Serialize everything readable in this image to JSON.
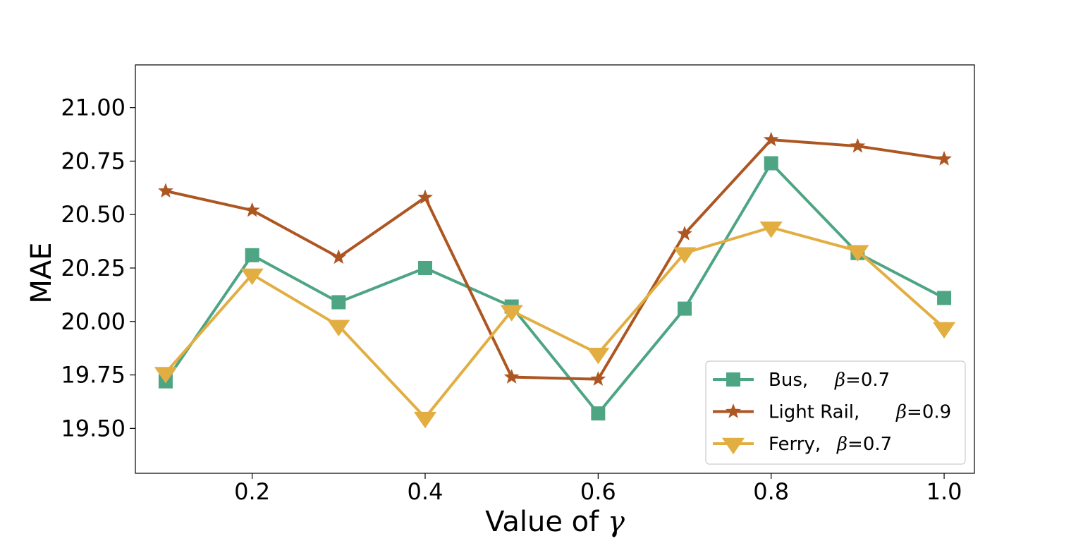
{
  "chart_data": {
    "type": "line",
    "title": "",
    "xlabel": "Value of",
    "xlabel_symbol": "γ",
    "ylabel": "MAE",
    "x": [
      0.1,
      0.2,
      0.3,
      0.4,
      0.5,
      0.6,
      0.7,
      0.8,
      0.9,
      1.0
    ],
    "xlim": [
      0.065,
      1.035
    ],
    "ylim": [
      19.29,
      21.2
    ],
    "x_ticks": [
      0.2,
      0.4,
      0.6,
      0.8,
      1.0
    ],
    "x_tick_labels": [
      "0.2",
      "0.4",
      "0.6",
      "0.8",
      "1.0"
    ],
    "y_ticks": [
      19.5,
      19.75,
      20.0,
      20.25,
      20.5,
      20.75,
      21.0
    ],
    "y_tick_labels": [
      "19.50",
      "19.75",
      "20.00",
      "20.25",
      "20.50",
      "20.75",
      "21.00"
    ],
    "grid": false,
    "legend_position": "lower-right",
    "series": [
      {
        "name": "Bus,",
        "beta_symbol": "β",
        "beta_value": "=0.7",
        "color": "#4da584",
        "marker": "square",
        "values": [
          19.72,
          20.31,
          20.09,
          20.25,
          20.07,
          19.57,
          20.06,
          20.74,
          20.32,
          20.11
        ]
      },
      {
        "name": "Light Rail,",
        "beta_symbol": "β",
        "beta_value": "=0.9",
        "color": "#ad5622",
        "marker": "star",
        "values": [
          20.61,
          20.52,
          20.3,
          20.58,
          19.74,
          19.73,
          20.41,
          20.85,
          20.82,
          20.76
        ]
      },
      {
        "name": "Ferry,",
        "beta_symbol": "β",
        "beta_value": "=0.7",
        "color": "#e2ae41",
        "marker": "triangle-down",
        "values": [
          19.76,
          20.22,
          19.98,
          19.55,
          20.05,
          19.85,
          20.32,
          20.44,
          20.33,
          19.97
        ]
      }
    ]
  }
}
